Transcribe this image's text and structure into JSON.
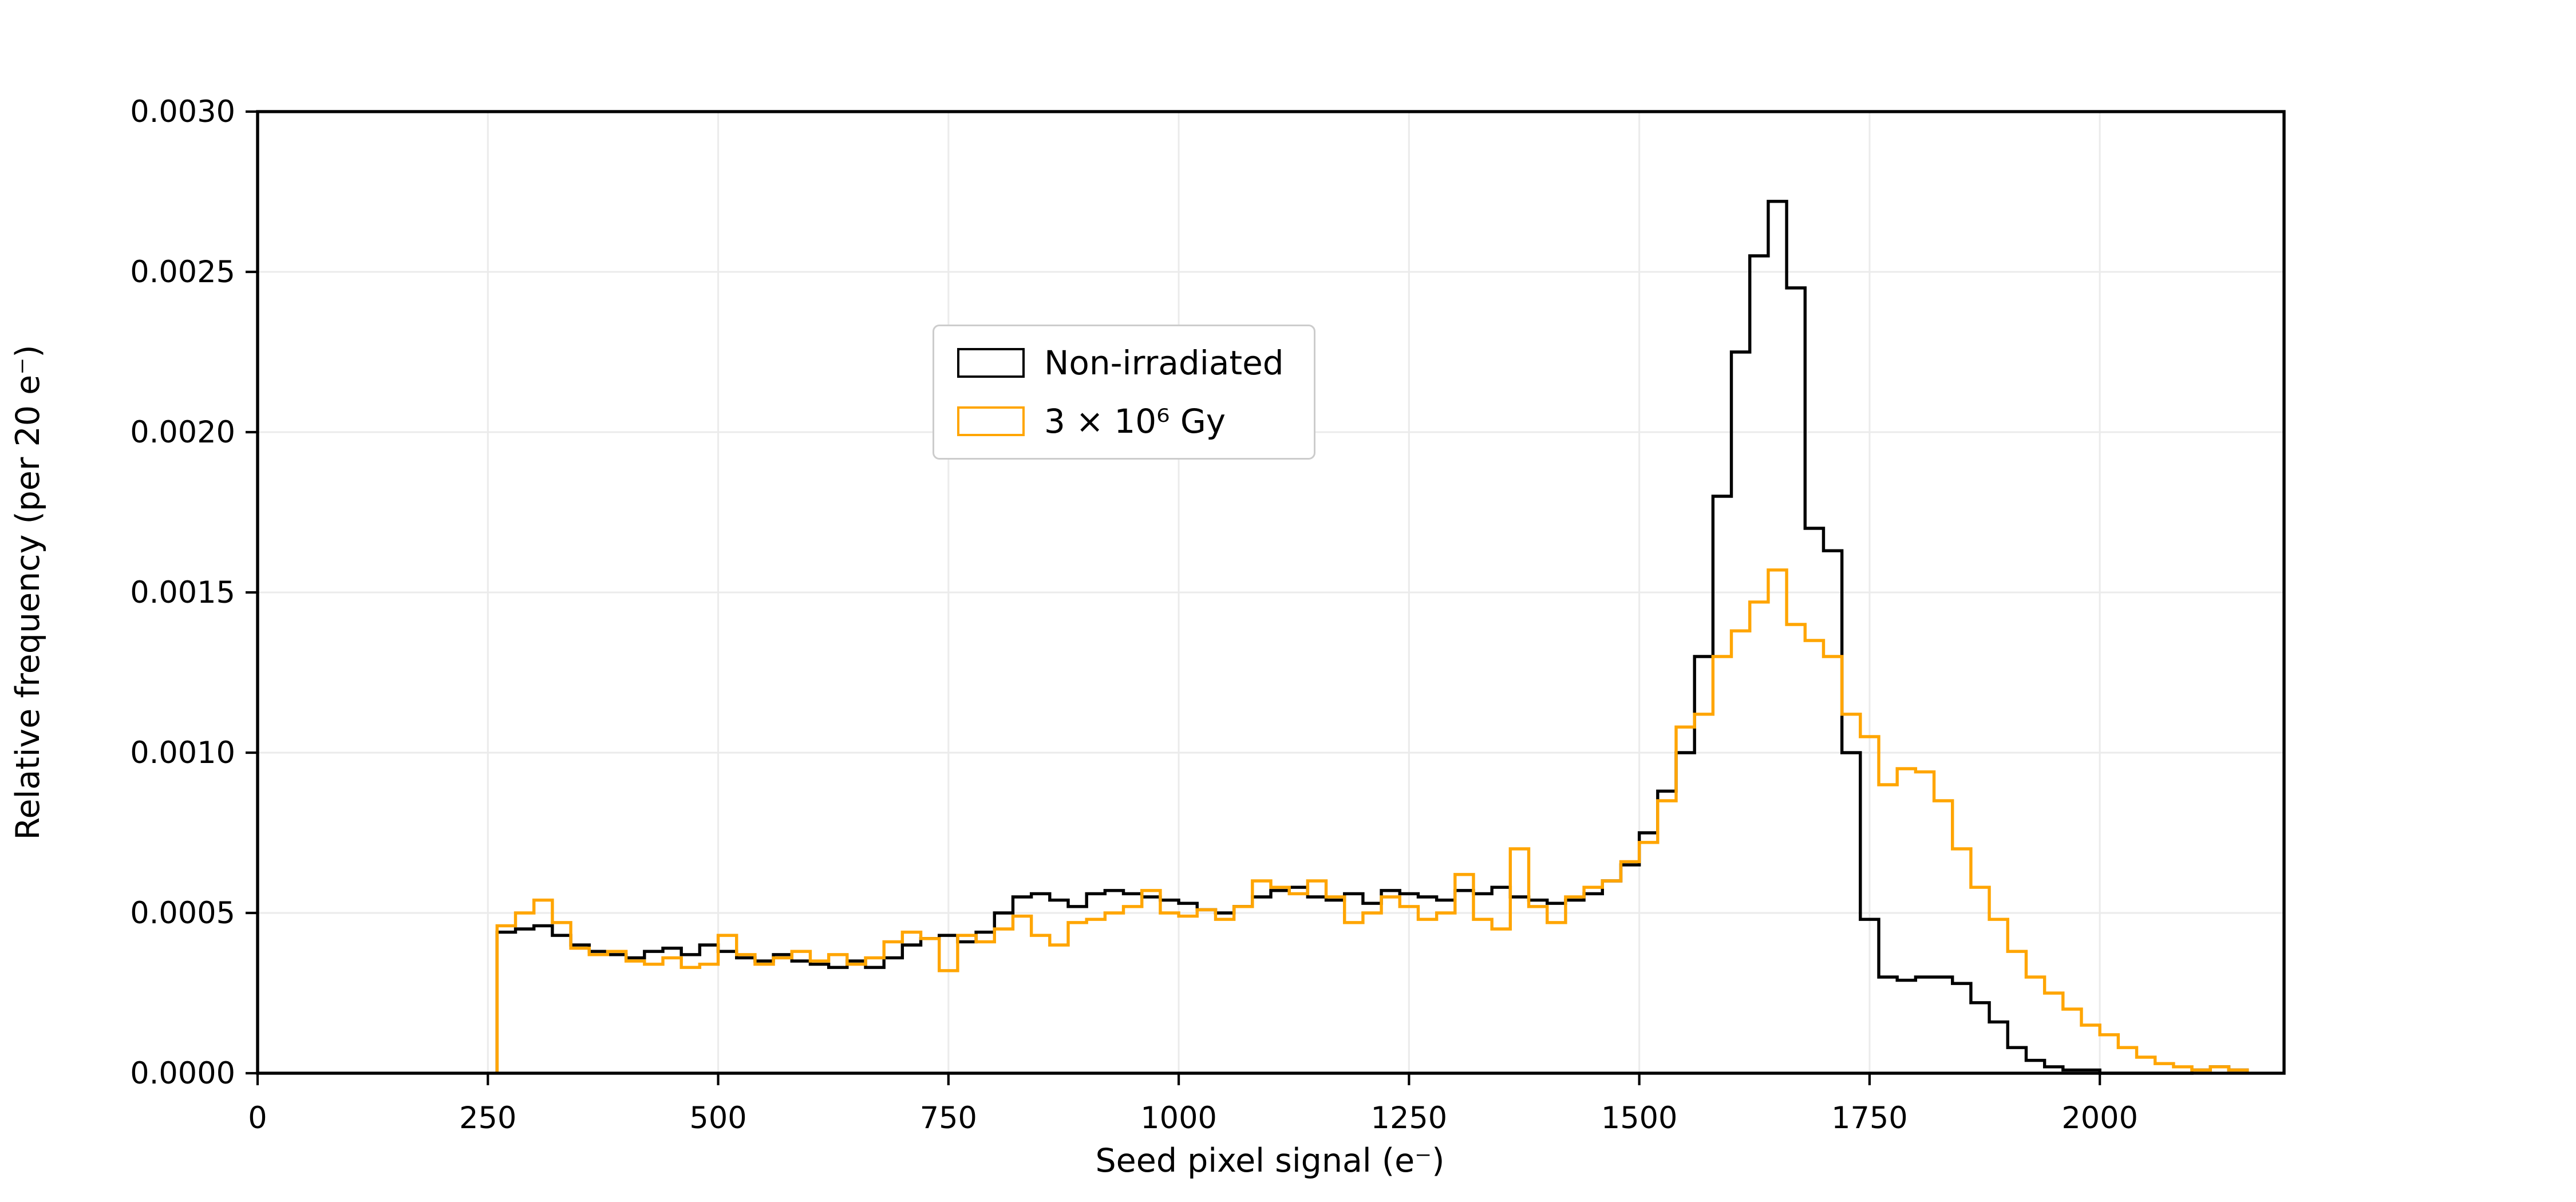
{
  "figure": {
    "background": "#ffffff",
    "grid_color": "#ebebeb",
    "spine_color": "#000000"
  },
  "chart_data": {
    "type": "histogram-step",
    "title": "",
    "xlabel": "Seed pixel signal (e⁻)",
    "ylabel": "Relative frequency (per 20 e⁻)",
    "xlim": [
      0,
      2200
    ],
    "ylim": [
      0,
      0.003
    ],
    "xticks": [
      0,
      250,
      500,
      750,
      1000,
      1250,
      1500,
      1750,
      2000
    ],
    "ytick_values": [
      0,
      0.0005,
      0.001,
      0.0015,
      0.002,
      0.0025,
      0.003
    ],
    "ytick_labels": [
      "0.0000",
      "0.0005",
      "0.0010",
      "0.0015",
      "0.0020",
      "0.0025",
      "0.0030"
    ],
    "grid": true,
    "legend_position": "upper center-left",
    "bin_start": 260,
    "bin_width": 20,
    "series": [
      {
        "name": "Non-irradiated",
        "color": "#000000",
        "values": [
          0.00044,
          0.00045,
          0.00046,
          0.00043,
          0.0004,
          0.00038,
          0.00037,
          0.00036,
          0.00038,
          0.00039,
          0.00037,
          0.0004,
          0.00038,
          0.00036,
          0.00035,
          0.00037,
          0.00035,
          0.00034,
          0.00033,
          0.00035,
          0.00033,
          0.00036,
          0.0004,
          0.00042,
          0.00043,
          0.00041,
          0.00044,
          0.0005,
          0.00055,
          0.00056,
          0.00054,
          0.00052,
          0.00056,
          0.00057,
          0.00056,
          0.00055,
          0.00054,
          0.00053,
          0.00051,
          0.0005,
          0.00052,
          0.00055,
          0.00057,
          0.00058,
          0.00055,
          0.00054,
          0.00056,
          0.00053,
          0.00057,
          0.00056,
          0.00055,
          0.00054,
          0.00057,
          0.00056,
          0.00058,
          0.00055,
          0.00054,
          0.00053,
          0.00054,
          0.00056,
          0.0006,
          0.00065,
          0.00075,
          0.00088,
          0.001,
          0.0013,
          0.0018,
          0.00225,
          0.00255,
          0.00272,
          0.00245,
          0.0017,
          0.00163,
          0.001,
          0.00048,
          0.0003,
          0.00029,
          0.0003,
          0.0003,
          0.00028,
          0.00022,
          0.00016,
          8e-05,
          4e-05,
          2e-05,
          1e-05,
          1e-05,
          0,
          0,
          0,
          0,
          0,
          1e-05,
          2e-05,
          1e-05
        ]
      },
      {
        "name": "3 × 10⁶ Gy",
        "color": "#ffa500",
        "values": [
          0.00046,
          0.0005,
          0.00054,
          0.00047,
          0.00039,
          0.00037,
          0.00038,
          0.00035,
          0.00034,
          0.00036,
          0.00033,
          0.00034,
          0.00043,
          0.00037,
          0.00034,
          0.00036,
          0.00038,
          0.00035,
          0.00037,
          0.00034,
          0.00036,
          0.00041,
          0.00044,
          0.00042,
          0.00032,
          0.00043,
          0.00041,
          0.00045,
          0.00049,
          0.00043,
          0.0004,
          0.00047,
          0.00048,
          0.0005,
          0.00052,
          0.00057,
          0.0005,
          0.00049,
          0.00051,
          0.00048,
          0.00052,
          0.0006,
          0.00058,
          0.00056,
          0.0006,
          0.00055,
          0.00047,
          0.0005,
          0.00055,
          0.00052,
          0.00048,
          0.0005,
          0.00062,
          0.00048,
          0.00045,
          0.0007,
          0.00052,
          0.00047,
          0.00055,
          0.00058,
          0.0006,
          0.00066,
          0.00072,
          0.00085,
          0.00108,
          0.00112,
          0.0013,
          0.00138,
          0.00147,
          0.00157,
          0.0014,
          0.00135,
          0.0013,
          0.00112,
          0.00105,
          0.0009,
          0.00095,
          0.00094,
          0.00085,
          0.0007,
          0.00058,
          0.00048,
          0.00038,
          0.0003,
          0.00025,
          0.0002,
          0.00015,
          0.00012,
          8e-05,
          5e-05,
          3e-05,
          2e-05,
          1e-05,
          2e-05,
          1e-05
        ]
      }
    ]
  }
}
